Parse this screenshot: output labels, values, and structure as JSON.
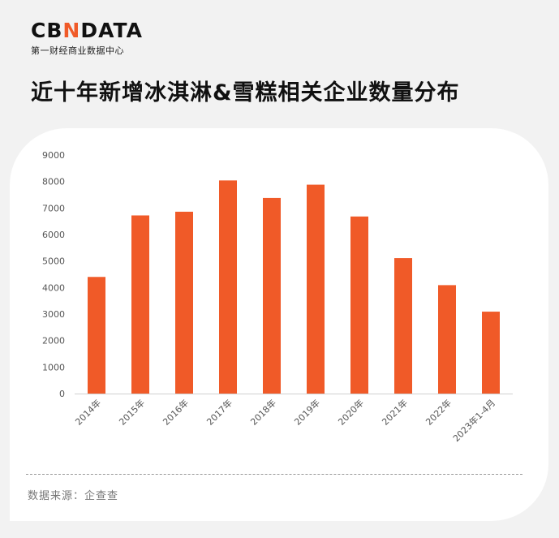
{
  "header": {
    "logo_text_pre": "CB",
    "logo_text_accent": "N",
    "logo_text_post": "DATA",
    "logo_subtitle": "第一财经商业数据中心",
    "title": "近十年新增冰淇淋&雪糕相关企业数量分布"
  },
  "footer": {
    "source": "数据来源：企查查"
  },
  "colors": {
    "bar": "#f05a28",
    "accent": "#f05a28",
    "background": "#f2f2f2",
    "card": "#ffffff"
  },
  "chart_data": {
    "type": "bar",
    "categories": [
      "2014年",
      "2015年",
      "2016年",
      "2017年",
      "2018年",
      "2019年",
      "2020年",
      "2021年",
      "2022年",
      "2023年1-4月"
    ],
    "values": [
      4400,
      6720,
      6860,
      8040,
      7380,
      7880,
      6680,
      5110,
      4090,
      3090
    ],
    "y_ticks": [
      "0",
      "1000",
      "2000",
      "3000",
      "4000",
      "5000",
      "6000",
      "7000",
      "8000",
      "9000"
    ],
    "ylim": [
      0,
      9000
    ],
    "title": "",
    "xlabel": "",
    "ylabel": "",
    "grid": false,
    "legend": false
  }
}
